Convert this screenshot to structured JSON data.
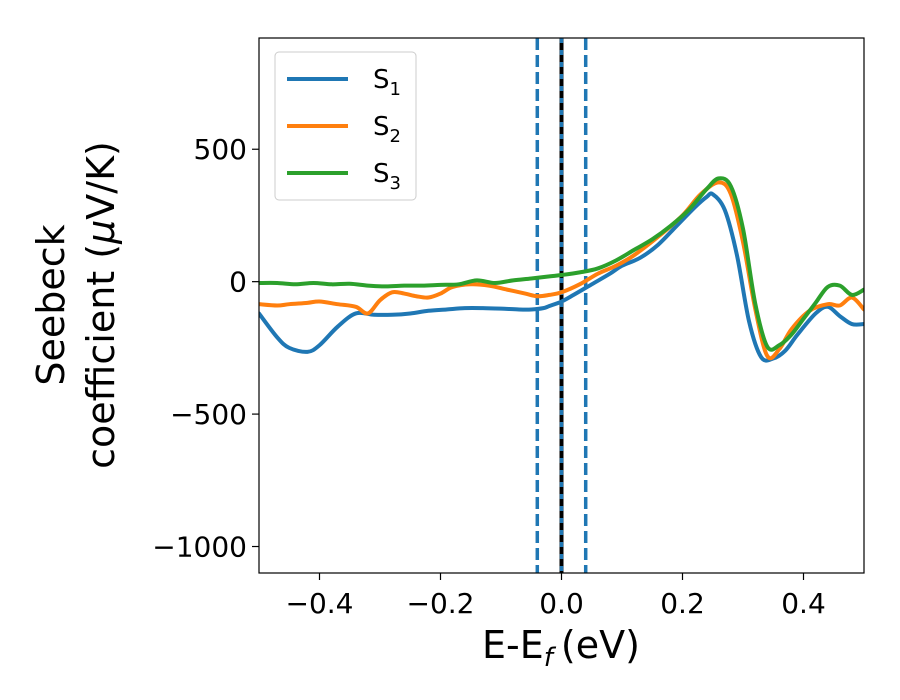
{
  "chart_data": {
    "type": "line",
    "xlabel": "E-E",
    "xlabel_sub": "f",
    "xlabel_unit": "(eV)",
    "ylabel_line1": "Seebeck",
    "ylabel_line2": "coefficient  (",
    "ylabel_mu": "μ",
    "ylabel_unit": "V/K)",
    "xlim": [
      -0.5,
      0.5
    ],
    "ylim": [
      -1100,
      920
    ],
    "xticks": [
      -0.4,
      -0.2,
      0.0,
      0.2,
      0.4
    ],
    "xtick_labels": [
      "−0.4",
      "−0.2",
      "0.0",
      "0.2",
      "0.4"
    ],
    "yticks": [
      -1000,
      -500,
      0,
      500
    ],
    "ytick_labels": [
      "−1000",
      "−500",
      "0",
      "500"
    ],
    "grid": false,
    "legend_position": "top-left",
    "vlines": [
      {
        "x": -0.04,
        "style": "dashed",
        "color": "#1f77b4"
      },
      {
        "x": 0.0,
        "style": "solid",
        "color": "#000000"
      },
      {
        "x": 0.0,
        "style": "dashed",
        "color": "#1f77b4"
      },
      {
        "x": 0.04,
        "style": "dashed",
        "color": "#1f77b4"
      }
    ],
    "series": [
      {
        "name": "S",
        "sub": "1",
        "color": "#1f77b4",
        "x": [
          -0.5,
          -0.47,
          -0.45,
          -0.42,
          -0.4,
          -0.37,
          -0.34,
          -0.31,
          -0.28,
          -0.25,
          -0.22,
          -0.19,
          -0.16,
          -0.13,
          -0.1,
          -0.07,
          -0.05,
          -0.03,
          -0.02,
          0.0,
          0.02,
          0.05,
          0.08,
          0.1,
          0.13,
          0.16,
          0.19,
          0.22,
          0.24,
          0.25,
          0.27,
          0.29,
          0.31,
          0.33,
          0.35,
          0.37,
          0.39,
          0.42,
          0.44,
          0.46,
          0.48,
          0.5
        ],
        "y": [
          -120,
          -210,
          -250,
          -265,
          -240,
          -170,
          -120,
          -125,
          -125,
          -120,
          -110,
          -105,
          -100,
          -100,
          -102,
          -105,
          -105,
          -100,
          -92,
          -75,
          -50,
          -10,
          30,
          60,
          90,
          140,
          210,
          280,
          320,
          330,
          270,
          100,
          -150,
          -285,
          -290,
          -260,
          -200,
          -120,
          -95,
          -130,
          -160,
          -160
        ]
      },
      {
        "name": "S",
        "sub": "2",
        "color": "#ff7f0e",
        "x": [
          -0.5,
          -0.47,
          -0.45,
          -0.42,
          -0.4,
          -0.37,
          -0.34,
          -0.32,
          -0.3,
          -0.28,
          -0.26,
          -0.24,
          -0.22,
          -0.2,
          -0.18,
          -0.15,
          -0.12,
          -0.09,
          -0.06,
          -0.04,
          -0.02,
          0.0,
          0.03,
          0.06,
          0.09,
          0.12,
          0.16,
          0.2,
          0.23,
          0.26,
          0.28,
          0.3,
          0.32,
          0.34,
          0.36,
          0.38,
          0.41,
          0.44,
          0.46,
          0.48,
          0.5
        ],
        "y": [
          -85,
          -90,
          -85,
          -80,
          -75,
          -85,
          -95,
          -120,
          -70,
          -40,
          -45,
          -55,
          -60,
          -45,
          -20,
          -10,
          -15,
          -30,
          -45,
          -55,
          -50,
          -40,
          -10,
          30,
          60,
          100,
          170,
          250,
          330,
          375,
          330,
          150,
          -100,
          -280,
          -255,
          -180,
          -110,
          -85,
          -90,
          -60,
          -105
        ]
      },
      {
        "name": "S",
        "sub": "3",
        "color": "#2ca02c",
        "x": [
          -0.5,
          -0.47,
          -0.44,
          -0.41,
          -0.38,
          -0.35,
          -0.32,
          -0.29,
          -0.26,
          -0.23,
          -0.2,
          -0.17,
          -0.14,
          -0.11,
          -0.08,
          -0.05,
          -0.02,
          0.0,
          0.03,
          0.06,
          0.09,
          0.12,
          0.15,
          0.18,
          0.21,
          0.24,
          0.26,
          0.28,
          0.3,
          0.32,
          0.34,
          0.36,
          0.38,
          0.4,
          0.42,
          0.44,
          0.46,
          0.48,
          0.5
        ],
        "y": [
          -5,
          -5,
          -10,
          -5,
          -10,
          -8,
          -15,
          -18,
          -15,
          -15,
          -12,
          -10,
          5,
          -5,
          5,
          12,
          20,
          25,
          35,
          50,
          80,
          120,
          160,
          210,
          270,
          350,
          390,
          360,
          200,
          -80,
          -245,
          -240,
          -200,
          -140,
          -80,
          -20,
          -15,
          -50,
          -30
        ]
      }
    ]
  }
}
